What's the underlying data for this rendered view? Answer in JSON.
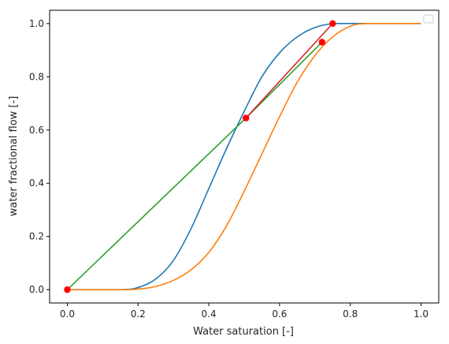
{
  "chart_data": {
    "type": "line",
    "xlabel": "Water saturation [-]",
    "ylabel": "water fractional flow [-]",
    "xlim": [
      -0.05,
      1.05
    ],
    "ylim": [
      -0.05,
      1.05
    ],
    "x_ticks": [
      0.0,
      0.2,
      0.4,
      0.6,
      0.8,
      1.0
    ],
    "x_tick_labels": [
      "0.0",
      "0.2",
      "0.4",
      "0.6",
      "0.8",
      "1.0"
    ],
    "y_ticks": [
      0.0,
      0.2,
      0.4,
      0.6,
      0.8,
      1.0
    ],
    "y_tick_labels": [
      "0.0",
      "0.2",
      "0.4",
      "0.6",
      "0.8",
      "1.0"
    ],
    "grid": false,
    "legend": "top-right (empty)",
    "series": [
      {
        "kind": "curve",
        "color": "#1f77b4",
        "x": [
          0.0,
          0.15,
          0.2,
          0.25,
          0.3,
          0.35,
          0.4,
          0.45,
          0.5,
          0.55,
          0.6,
          0.65,
          0.7,
          0.75,
          0.8,
          1.0
        ],
        "y": [
          0.0,
          0.0,
          0.008,
          0.04,
          0.11,
          0.23,
          0.38,
          0.53,
          0.67,
          0.8,
          0.89,
          0.95,
          0.985,
          1.0,
          1.0,
          1.0
        ]
      },
      {
        "kind": "curve",
        "color": "#ff7f0e",
        "x": [
          0.0,
          0.15,
          0.2,
          0.25,
          0.3,
          0.35,
          0.4,
          0.45,
          0.5,
          0.55,
          0.6,
          0.65,
          0.7,
          0.75,
          0.8,
          0.85,
          1.0
        ],
        "y": [
          0.0,
          0.0,
          0.002,
          0.012,
          0.035,
          0.075,
          0.14,
          0.24,
          0.37,
          0.51,
          0.65,
          0.78,
          0.88,
          0.95,
          0.99,
          1.0,
          1.0
        ]
      },
      {
        "kind": "segment",
        "color": "#2ca02c",
        "x": [
          0.0,
          0.505,
          0.72
        ],
        "y": [
          0.0,
          0.645,
          0.93
        ]
      },
      {
        "kind": "segment",
        "color": "#d62728",
        "x": [
          0.505,
          0.75
        ],
        "y": [
          0.645,
          1.0
        ]
      }
    ],
    "points": {
      "color": "#ff0000",
      "x": [
        0.0,
        0.505,
        0.72,
        0.75
      ],
      "y": [
        0.0,
        0.645,
        0.93,
        1.0
      ]
    }
  }
}
